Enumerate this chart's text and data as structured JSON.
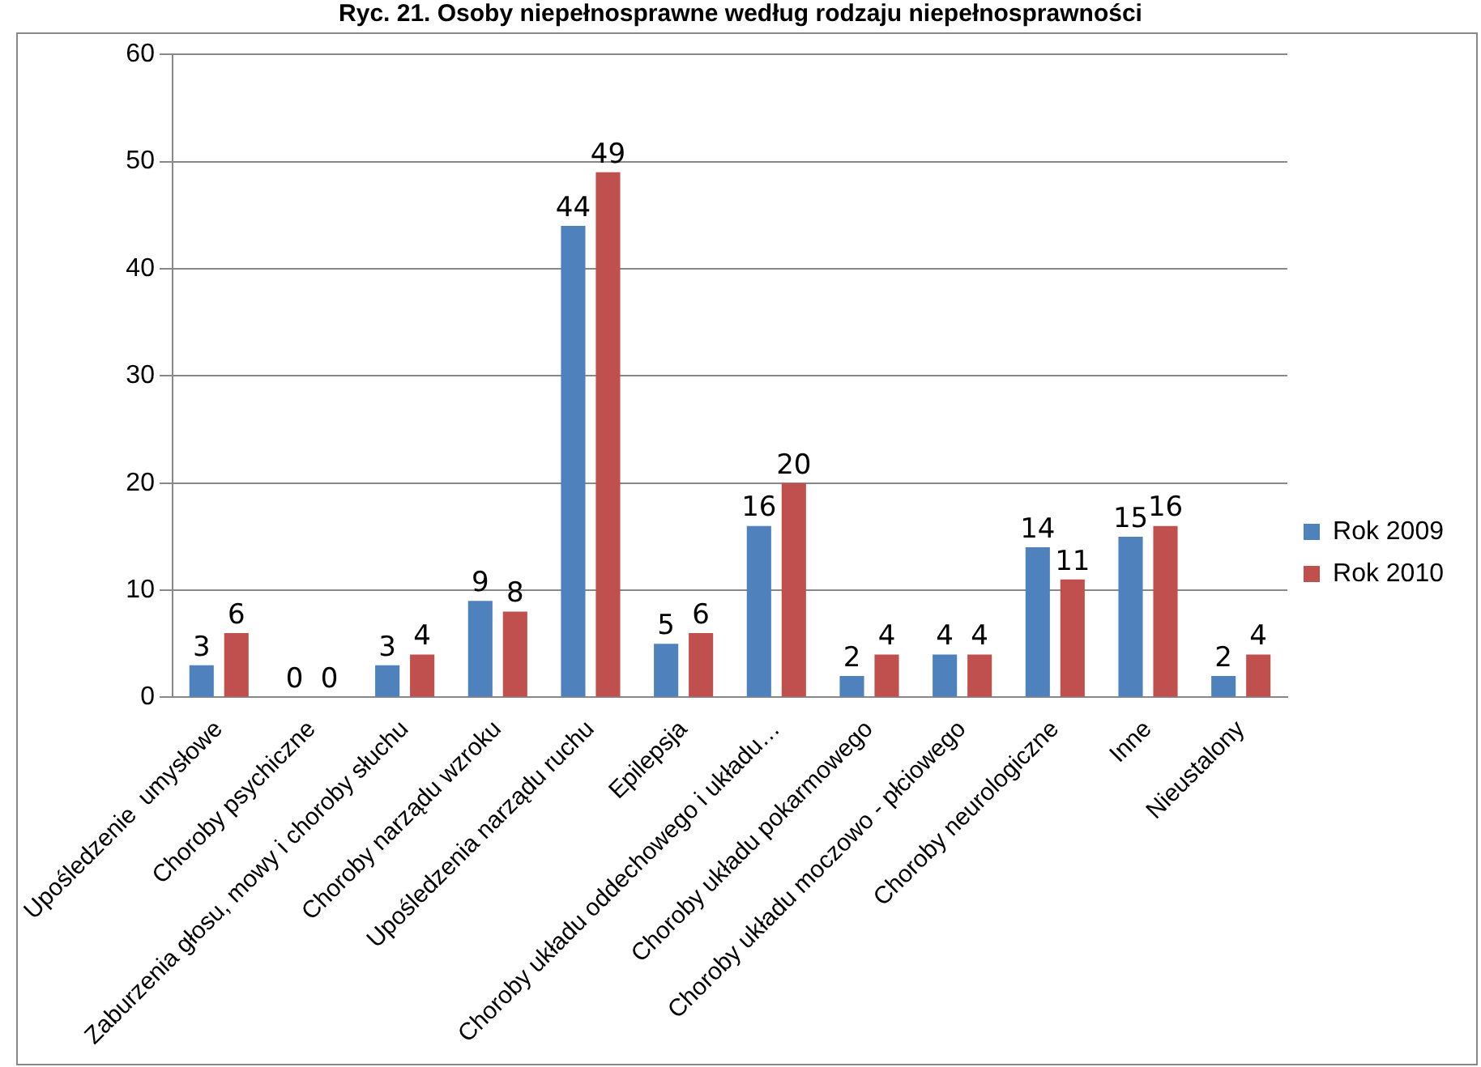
{
  "chart_data": {
    "type": "bar",
    "title": "Ryc. 21. Osoby niepełnosprawne według rodzaju niepełnosprawności",
    "categories": [
      "Upośledzenie  umysłowe",
      "Choroby psychiczne",
      "Zaburzenia głosu, mowy i choroby słuchu",
      "Choroby narządu wzroku",
      "Upośledzenia narządu ruchu",
      "Epilepsja",
      "Choroby układu oddechowego i układu…",
      "Choroby układu pokarmowego",
      "Choroby układu moczowo - płciowego",
      "Choroby neurologiczne",
      "Inne",
      "Nieustalony"
    ],
    "series": [
      {
        "name": "Rok 2009",
        "color": "#4f81bd",
        "values": [
          3,
          0,
          3,
          9,
          44,
          5,
          16,
          2,
          4,
          14,
          15,
          2
        ]
      },
      {
        "name": "Rok 2010",
        "color": "#c0504d",
        "values": [
          6,
          0,
          4,
          8,
          49,
          6,
          20,
          4,
          4,
          11,
          16,
          4
        ]
      }
    ],
    "ylim": [
      0,
      60
    ],
    "yticks": [
      0,
      10,
      20,
      30,
      40,
      50,
      60
    ],
    "grid": "y",
    "legend": "right",
    "data_labels": true
  }
}
